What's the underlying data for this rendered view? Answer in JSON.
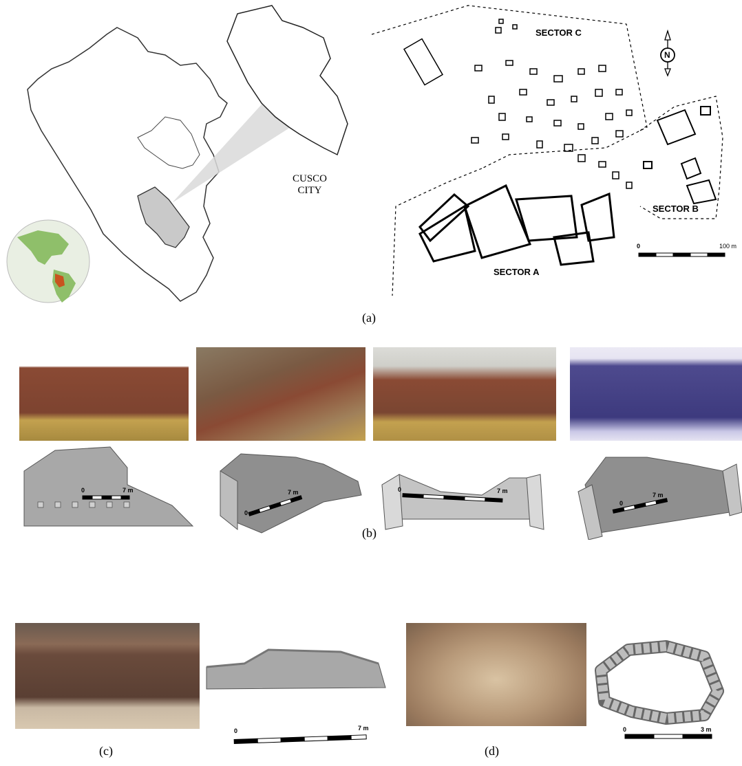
{
  "panel_a": {
    "caption": "(a)",
    "city_label_line1": "CUSCO",
    "city_label_line2": "CITY",
    "sector_a": "SECTOR A",
    "sector_b": "SECTOR B",
    "sector_c": "SECTOR C",
    "north": "N",
    "scale_zero": "0",
    "scale_max": "100 m"
  },
  "panel_b": {
    "caption": "(b)",
    "scales": [
      {
        "zero": "0",
        "max": "7 m"
      },
      {
        "zero": "0",
        "max": "7 m"
      },
      {
        "zero": "0",
        "max": "7 m"
      },
      {
        "zero": "0",
        "max": "7 m"
      }
    ]
  },
  "panel_c": {
    "caption": "(c)",
    "scale_zero": "0",
    "scale_max": "7 m"
  },
  "panel_d": {
    "caption": "(d)",
    "scale_zero": "0",
    "scale_max": "3 m"
  },
  "colors": {
    "peru_highlight": "#c9c9c9",
    "globe_land": "#8fbf6a",
    "globe_peru": "#c8541f",
    "wall_stone": "#8a4a34",
    "model_grey": "#a8a8a8"
  }
}
